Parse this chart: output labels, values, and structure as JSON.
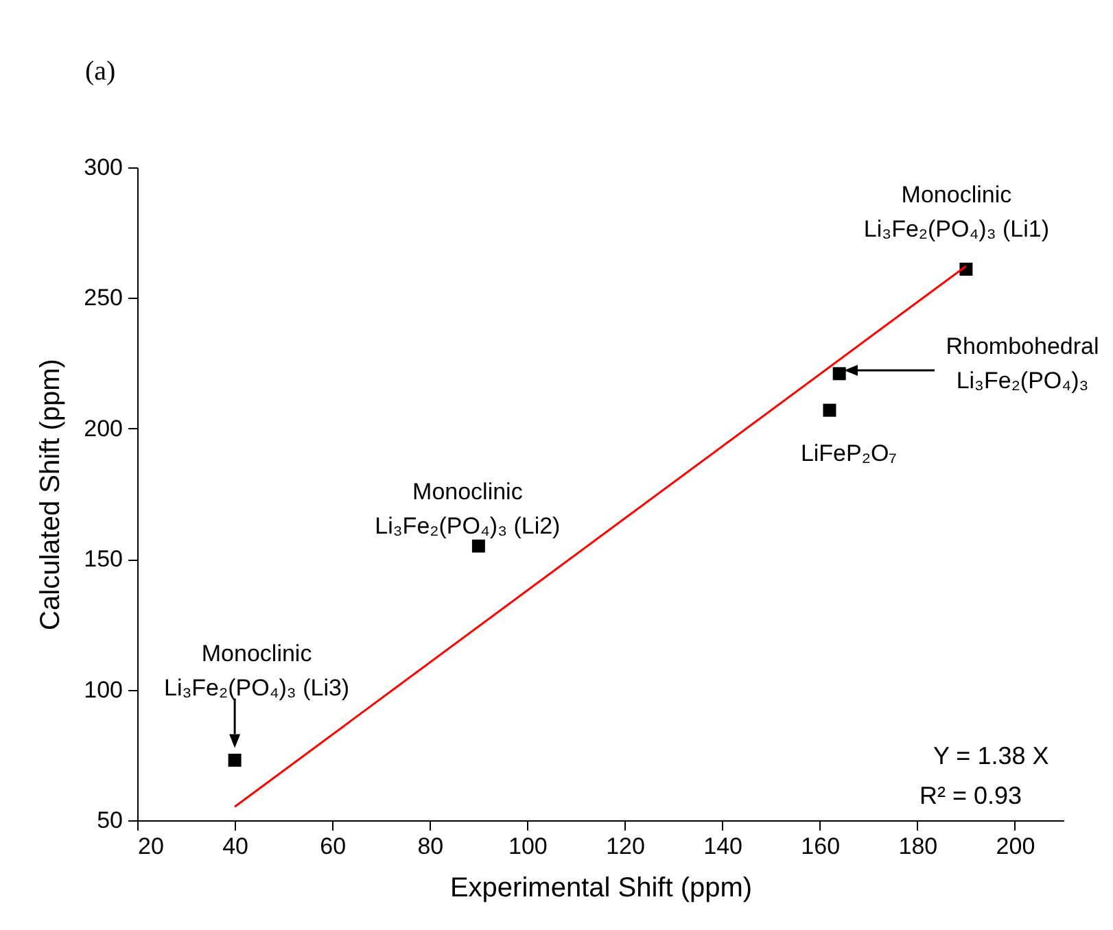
{
  "chart_data": {
    "type": "scatter",
    "xlabel": "Experimental Shift (ppm)",
    "ylabel": "Calculated Shift (ppm)",
    "xlim": [
      20,
      210
    ],
    "xticks": [
      20,
      40,
      60,
      80,
      100,
      120,
      140,
      160,
      180,
      200
    ],
    "ylim": [
      50,
      300
    ],
    "yticks": [
      50,
      100,
      150,
      200,
      250,
      300
    ],
    "grid": false,
    "series": [
      {
        "color": "#000000",
        "marker": "square",
        "x": [
          40,
          90,
          162,
          164,
          190
        ],
        "values": [
          73,
          155,
          207,
          221,
          261
        ]
      },
      {
        "type": "line",
        "color": "#ff0000",
        "x": [
          40,
          190
        ],
        "values": [
          55.2,
          262.2
        ]
      }
    ],
    "annotations": [
      "(a)",
      {
        "text": "Monoclinic\nLi₃Fe₂(PO₄)₃ (Li1)",
        "x": 190,
        "y": 261
      },
      "Rhombohedral\nLi₃Fe₂(PO₄)₃",
      {
        "text": "LiFeP₂O₇",
        "x": 162,
        "y": 207
      },
      {
        "text": "Monoclinic\nLi₃Fe₂(PO₄)₃ (Li2)",
        "x": 90,
        "y": 155
      },
      {
        "text": "Monoclinic\nLi₃Fe₂(PO₄)₃ (Li3)",
        "x": 40,
        "y": 73
      },
      "Y = 1.38 X",
      "R² = 0.93"
    ]
  }
}
